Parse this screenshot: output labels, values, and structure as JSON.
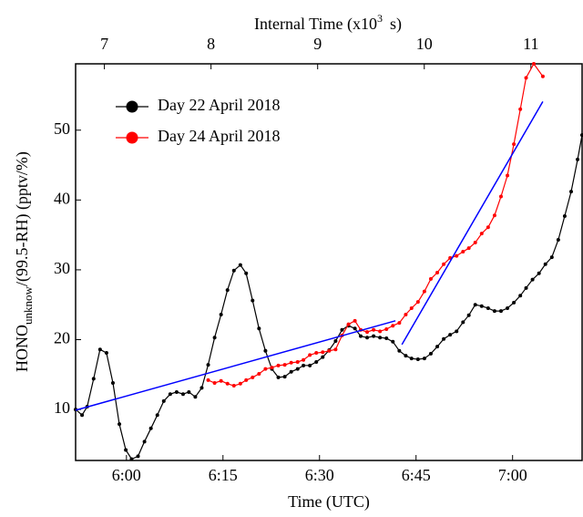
{
  "chart_data": {
    "type": "line",
    "xlabel": "Time (UTC)",
    "x2label": "Internal Time (x10",
    "x2label_sup": "3",
    "x2label_end": "s)",
    "ylabel": "HONO",
    "ylabel_sub": "unknow",
    "ylabel_end": "/(99.5-RH) (pptv/%)",
    "xlim": [
      352.1,
      430.8
    ],
    "xticks": [
      {
        "value": 360,
        "label": "6:00"
      },
      {
        "value": 375,
        "label": "6:15"
      },
      {
        "value": 390,
        "label": "6:30"
      },
      {
        "value": 405,
        "label": "6:45"
      },
      {
        "value": 420,
        "label": "7:00"
      }
    ],
    "x2lim": [
      6.73,
      11.48
    ],
    "x2ticks": [
      7,
      8,
      9,
      10,
      11
    ],
    "ylim": [
      2.7,
      59.5
    ],
    "yticks": [
      10,
      20,
      30,
      40,
      50
    ],
    "legend": "upper left",
    "series": [
      {
        "name": "Day 22 April 2018",
        "color": "#000000",
        "x": [
          352.1,
          353.1,
          353.9,
          354.9,
          355.9,
          356.9,
          357.9,
          358.9,
          359.9,
          360.8,
          361.8,
          362.8,
          363.8,
          364.8,
          365.8,
          366.8,
          367.8,
          368.8,
          369.7,
          370.7,
          371.7,
          372.7,
          373.7,
          374.7,
          375.7,
          376.7,
          377.7,
          378.6,
          379.6,
          380.6,
          381.6,
          382.6,
          383.6,
          384.6,
          385.6,
          386.6,
          387.5,
          388.5,
          389.5,
          390.5,
          391.5,
          392.5,
          393.5,
          394.5,
          395.5,
          396.4,
          397.4,
          398.4,
          399.4,
          400.4,
          401.4,
          402.4,
          403.4,
          404.3,
          405.3,
          406.3,
          407.3,
          408.3,
          409.3,
          410.3,
          411.3,
          412.3,
          413.2,
          414.2,
          415.2,
          416.2,
          417.2,
          418.2,
          419.2,
          420.2,
          421.2,
          422.1,
          423.1,
          424.1,
          425.1,
          426.1,
          427.1,
          428.1,
          429.1,
          430.1,
          430.8
        ],
        "values": [
          10.0,
          9.2,
          10.4,
          14.4,
          18.6,
          18.1,
          13.8,
          7.9,
          4.2,
          2.9,
          3.3,
          5.4,
          7.3,
          9.2,
          11.2,
          12.2,
          12.5,
          12.2,
          12.5,
          11.8,
          13.1,
          16.4,
          20.3,
          23.6,
          27.1,
          29.9,
          30.7,
          29.5,
          25.6,
          21.6,
          18.4,
          15.8,
          14.6,
          14.7,
          15.4,
          15.8,
          16.3,
          16.3,
          16.8,
          17.5,
          18.5,
          19.8,
          21.4,
          22.0,
          21.6,
          20.5,
          20.3,
          20.5,
          20.3,
          20.2,
          19.7,
          18.4,
          17.7,
          17.3,
          17.2,
          17.3,
          18.0,
          19.0,
          20.1,
          20.7,
          21.2,
          22.5,
          23.5,
          25.0,
          24.8,
          24.5,
          24.1,
          24.1,
          24.5,
          25.3,
          26.3,
          27.4,
          28.6,
          29.5,
          30.8,
          31.8,
          34.3,
          37.7,
          41.2,
          45.8,
          49.3
        ]
      },
      {
        "name": "Day 24 April 2018",
        "color": "#ff0000",
        "x": [
          372.7,
          373.7,
          374.7,
          375.7,
          376.7,
          377.7,
          378.6,
          379.6,
          380.6,
          381.6,
          382.6,
          383.6,
          384.6,
          385.6,
          386.6,
          387.5,
          388.5,
          389.5,
          390.5,
          391.5,
          392.5,
          393.5,
          394.5,
          395.5,
          396.4,
          397.4,
          398.4,
          399.4,
          400.4,
          401.4,
          402.4,
          403.4,
          404.3,
          405.3,
          406.3,
          407.3,
          408.3,
          409.3,
          410.3,
          411.3,
          412.3,
          413.2,
          414.2,
          415.2,
          416.2,
          417.2,
          418.2,
          419.2,
          420.2,
          421.2,
          422.1,
          423.3,
          424.7
        ],
        "values": [
          14.2,
          13.8,
          14.1,
          13.7,
          13.4,
          13.7,
          14.2,
          14.6,
          15.1,
          15.8,
          16.0,
          16.3,
          16.4,
          16.7,
          16.8,
          17.1,
          17.8,
          18.1,
          18.2,
          18.4,
          18.6,
          20.6,
          22.2,
          22.7,
          21.4,
          21.1,
          21.4,
          21.2,
          21.5,
          22.0,
          22.4,
          23.6,
          24.5,
          25.4,
          26.9,
          28.7,
          29.6,
          30.8,
          31.7,
          32.0,
          32.6,
          33.1,
          33.9,
          35.2,
          36.1,
          37.8,
          40.5,
          43.5,
          48.0,
          53.0,
          57.5,
          59.5,
          57.7
        ]
      }
    ],
    "fits": [
      {
        "color": "#0000ff",
        "x": [
          352.1,
          401.8
        ],
        "values": [
          9.9,
          22.7
        ]
      },
      {
        "color": "#0000ff",
        "x": [
          402.8,
          424.7
        ],
        "values": [
          19.3,
          54.1
        ]
      }
    ]
  }
}
